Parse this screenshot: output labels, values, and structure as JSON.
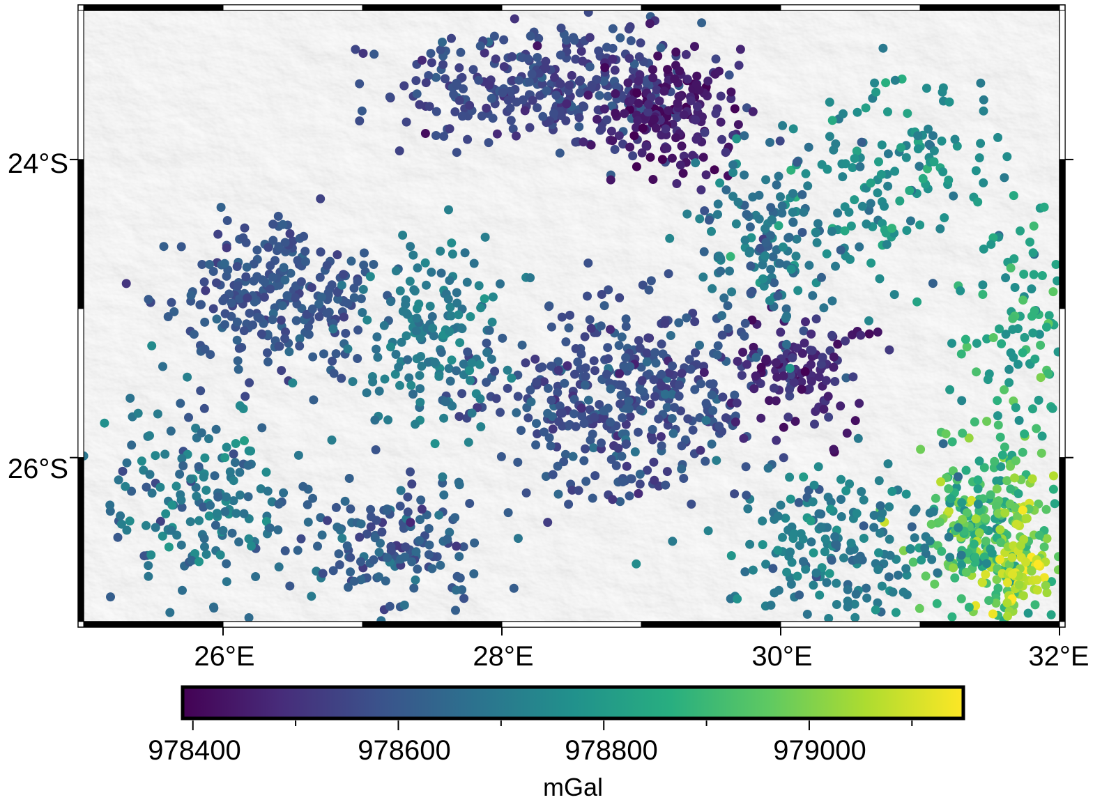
{
  "map": {
    "region": {
      "lon_min": 25.0,
      "lon_max": 32.0,
      "lat_min": -27.1,
      "lat_max": -23.0
    },
    "x_ticks": [
      {
        "value": 26,
        "label": "26°E"
      },
      {
        "value": 28,
        "label": "28°E"
      },
      {
        "value": 30,
        "label": "30°E"
      },
      {
        "value": 32,
        "label": "32°E"
      }
    ],
    "y_ticks": [
      {
        "value": -24,
        "label": "24°S"
      },
      {
        "value": -26,
        "label": "26°S"
      }
    ],
    "background": "shaded relief (grey hillshade)",
    "point_style": "filled circles colored by gravity"
  },
  "colorbar": {
    "cmap": "viridis",
    "range": [
      978390,
      979150
    ],
    "ticks": [
      {
        "value": 978400,
        "label": "978400"
      },
      {
        "value": 978600,
        "label": "978600"
      },
      {
        "value": 978800,
        "label": "978800"
      },
      {
        "value": 979000,
        "label": "979000"
      }
    ],
    "minor_ticks": [
      978500,
      978700,
      978900,
      979100
    ],
    "unit": "mGal"
  },
  "colors": {
    "viridis": [
      "#440154",
      "#472c7a",
      "#3b528b",
      "#2c728e",
      "#21918c",
      "#28ae80",
      "#5ec962",
      "#addc30",
      "#fde725"
    ]
  },
  "chart_data": {
    "type": "scatter",
    "xlabel": "",
    "ylabel": "",
    "xlim": [
      25.0,
      32.0
    ],
    "ylim": [
      -27.1,
      -23.0
    ],
    "value_range": [
      978390,
      979150
    ],
    "clusters": [
      {
        "lon": 28.3,
        "lat": -23.5,
        "sx": 0.75,
        "sy": 0.3,
        "n": 320,
        "value": 978560,
        "jitter": 35
      },
      {
        "lon": 29.2,
        "lat": -23.7,
        "sx": 0.35,
        "sy": 0.3,
        "n": 180,
        "value": 978450,
        "jitter": 40
      },
      {
        "lon": 26.4,
        "lat": -24.9,
        "sx": 0.5,
        "sy": 0.4,
        "n": 260,
        "value": 978590,
        "jitter": 30
      },
      {
        "lon": 28.9,
        "lat": -25.6,
        "sx": 0.7,
        "sy": 0.45,
        "n": 420,
        "value": 978580,
        "jitter": 40
      },
      {
        "lon": 27.5,
        "lat": -25.2,
        "sx": 0.35,
        "sy": 0.5,
        "n": 160,
        "value": 978710,
        "jitter": 30
      },
      {
        "lon": 30.1,
        "lat": -25.4,
        "sx": 0.35,
        "sy": 0.3,
        "n": 120,
        "value": 978480,
        "jitter": 40
      },
      {
        "lon": 31.5,
        "lat": -26.5,
        "sx": 0.35,
        "sy": 0.45,
        "n": 280,
        "value": 978930,
        "jitter": 80
      },
      {
        "lon": 31.7,
        "lat": -26.8,
        "sx": 0.18,
        "sy": 0.25,
        "n": 70,
        "value": 979080,
        "jitter": 50
      },
      {
        "lon": 30.4,
        "lat": -26.6,
        "sx": 0.6,
        "sy": 0.35,
        "n": 200,
        "value": 978700,
        "jitter": 45
      },
      {
        "lon": 25.8,
        "lat": -26.3,
        "sx": 0.5,
        "sy": 0.5,
        "n": 180,
        "value": 978690,
        "jitter": 50
      },
      {
        "lon": 27.2,
        "lat": -26.6,
        "sx": 0.5,
        "sy": 0.35,
        "n": 160,
        "value": 978620,
        "jitter": 45
      },
      {
        "lon": 30.8,
        "lat": -24.2,
        "sx": 0.6,
        "sy": 0.5,
        "n": 160,
        "value": 978770,
        "jitter": 60
      },
      {
        "lon": 31.7,
        "lat": -25.2,
        "sx": 0.3,
        "sy": 0.6,
        "n": 90,
        "value": 978830,
        "jitter": 60
      },
      {
        "lon": 29.9,
        "lat": -24.6,
        "sx": 0.4,
        "sy": 0.4,
        "n": 140,
        "value": 978680,
        "jitter": 50
      }
    ]
  }
}
